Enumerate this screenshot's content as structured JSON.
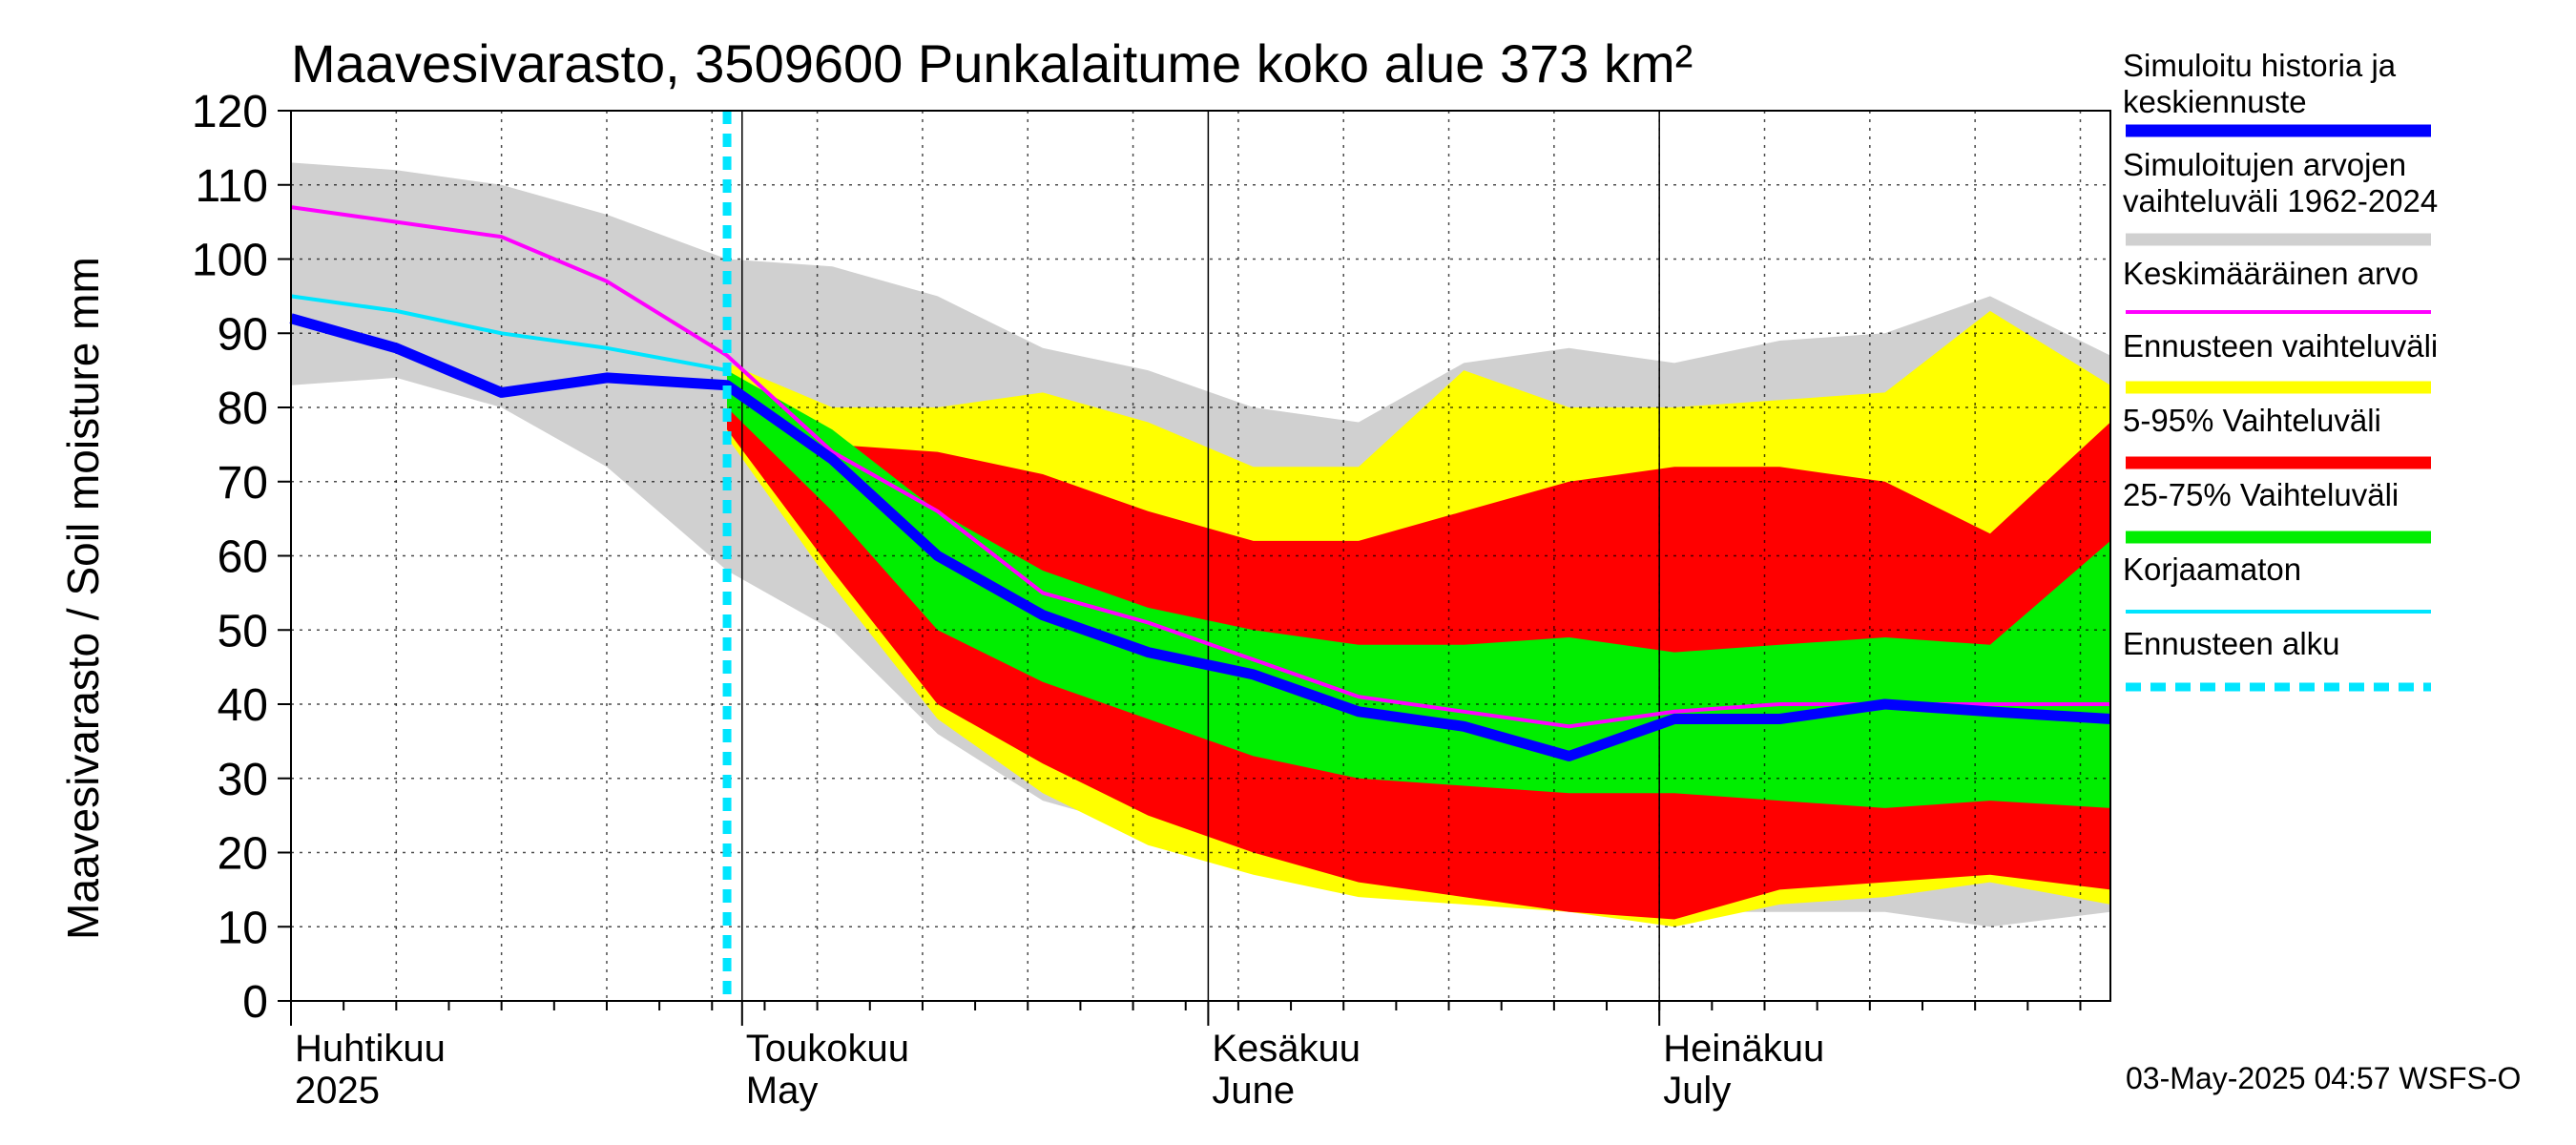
{
  "chart_data": {
    "type": "area",
    "title": "Maavesivarasto, 3509600 Punkalaitume koko alue 373 km²",
    "ylabel": "Maavesivarasto / Soil moisture   mm",
    "ylim": [
      0,
      120
    ],
    "yticks": [
      "0",
      "10",
      "20",
      "30",
      "40",
      "50",
      "60",
      "70",
      "80",
      "90",
      "100",
      "110",
      "120"
    ],
    "xlim": [
      "2025-04-01",
      "2025-07-31"
    ],
    "grid": true,
    "forecast_start": "2025-04-30",
    "month_labels": [
      {
        "fi": "Huhtikuu",
        "en": "2025",
        "date": "2025-04-01"
      },
      {
        "fi": "Toukokuu",
        "en": "May",
        "date": "2025-05-01"
      },
      {
        "fi": "Kesäkuu",
        "en": "June",
        "date": "2025-06-01"
      },
      {
        "fi": "Heinäkuu",
        "en": "July",
        "date": "2025-07-01"
      }
    ],
    "x": [
      "2025-04-01",
      "2025-04-08",
      "2025-04-15",
      "2025-04-22",
      "2025-04-30",
      "2025-05-07",
      "2025-05-14",
      "2025-05-21",
      "2025-05-28",
      "2025-06-04",
      "2025-06-11",
      "2025-06-18",
      "2025-06-25",
      "2025-07-02",
      "2025-07-09",
      "2025-07-16",
      "2025-07-23",
      "2025-07-31"
    ],
    "series": [
      {
        "name": "Simuloitujen arvojen vaihteluväli 1962-2024",
        "color": "#d0d0d0",
        "upper": [
          113,
          112,
          110,
          106,
          100,
          99,
          95,
          88,
          85,
          80,
          78,
          86,
          88,
          86,
          89,
          90,
          95,
          87
        ],
        "lower": [
          83,
          84,
          80,
          72,
          58,
          50,
          36,
          27,
          23,
          20,
          17,
          14,
          12,
          12,
          12,
          12,
          10,
          12
        ]
      },
      {
        "name": "Ennusteen vaihteluväli",
        "color": "#ffff00",
        "upper": [
          null,
          null,
          null,
          null,
          86,
          80,
          80,
          82,
          78,
          72,
          72,
          85,
          80,
          80,
          81,
          82,
          93,
          83
        ],
        "lower": [
          null,
          null,
          null,
          null,
          76,
          56,
          38,
          28,
          21,
          17,
          14,
          13,
          12,
          10,
          13,
          14,
          16,
          13
        ]
      },
      {
        "name": "5-95% Vaihteluväli",
        "color": "#ff0000",
        "upper": [
          null,
          null,
          null,
          null,
          85,
          75,
          74,
          71,
          66,
          62,
          62,
          66,
          70,
          72,
          72,
          70,
          63,
          78
        ]
      },
      {
        "name": "5-95% Vaihteluväli lower",
        "color": "#ff0000",
        "lower": [
          null,
          null,
          null,
          null,
          77,
          58,
          40,
          32,
          25,
          20,
          16,
          14,
          12,
          11,
          15,
          16,
          17,
          15
        ]
      },
      {
        "name": "25-75% Vaihteluväli",
        "color": "#00ee00",
        "upper": [
          null,
          null,
          null,
          null,
          85,
          77,
          66,
          58,
          53,
          50,
          48,
          48,
          49,
          47,
          48,
          49,
          48,
          62
        ]
      },
      {
        "name": "25-75% Vaihteluväli lower",
        "color": "#00ee00",
        "lower": [
          null,
          null,
          null,
          null,
          80,
          66,
          50,
          43,
          38,
          33,
          30,
          29,
          28,
          28,
          27,
          26,
          27,
          26
        ]
      },
      {
        "name": "Keskimääräinen arvo",
        "color": "#ff00ff",
        "values": [
          107,
          105,
          103,
          97,
          87,
          74,
          66,
          55,
          51,
          46,
          41,
          39,
          37,
          39,
          40,
          40,
          40,
          40
        ]
      },
      {
        "name": "Korjaamaton",
        "color": "#00e5ff",
        "values": [
          95,
          93,
          90,
          88,
          85,
          null,
          null,
          null,
          null,
          null,
          null,
          null,
          null,
          null,
          null,
          null,
          null,
          null
        ]
      },
      {
        "name": "Simuloitu historia ja keskiennuste",
        "color": "#0000ff",
        "values": [
          92,
          88,
          82,
          84,
          83,
          73,
          60,
          52,
          47,
          44,
          39,
          37,
          33,
          38,
          38,
          40,
          39,
          38
        ]
      }
    ],
    "legend": [
      {
        "label": "Simuloitu historia ja keskiennuste",
        "color": "#0000ff",
        "style": "thick"
      },
      {
        "label": "Simuloitujen arvojen vaihteluväli 1962-2024",
        "color": "#d0d0d0",
        "style": "thick"
      },
      {
        "label": "Keskimääräinen arvo",
        "color": "#ff00ff",
        "style": "thin"
      },
      {
        "label": "Ennusteen vaihteluväli",
        "color": "#ffff00",
        "style": "thick"
      },
      {
        "label": "5-95% Vaihteluväli",
        "color": "#ff0000",
        "style": "thick"
      },
      {
        "label": "25-75% Vaihteluväli",
        "color": "#00ee00",
        "style": "thick"
      },
      {
        "label": "Korjaamaton",
        "color": "#00e5ff",
        "style": "thin"
      },
      {
        "label": "Ennusteen alku",
        "color": "#00e5ff",
        "style": "dashed"
      }
    ],
    "footer": "03-May-2025 04:57 WSFS-O"
  }
}
